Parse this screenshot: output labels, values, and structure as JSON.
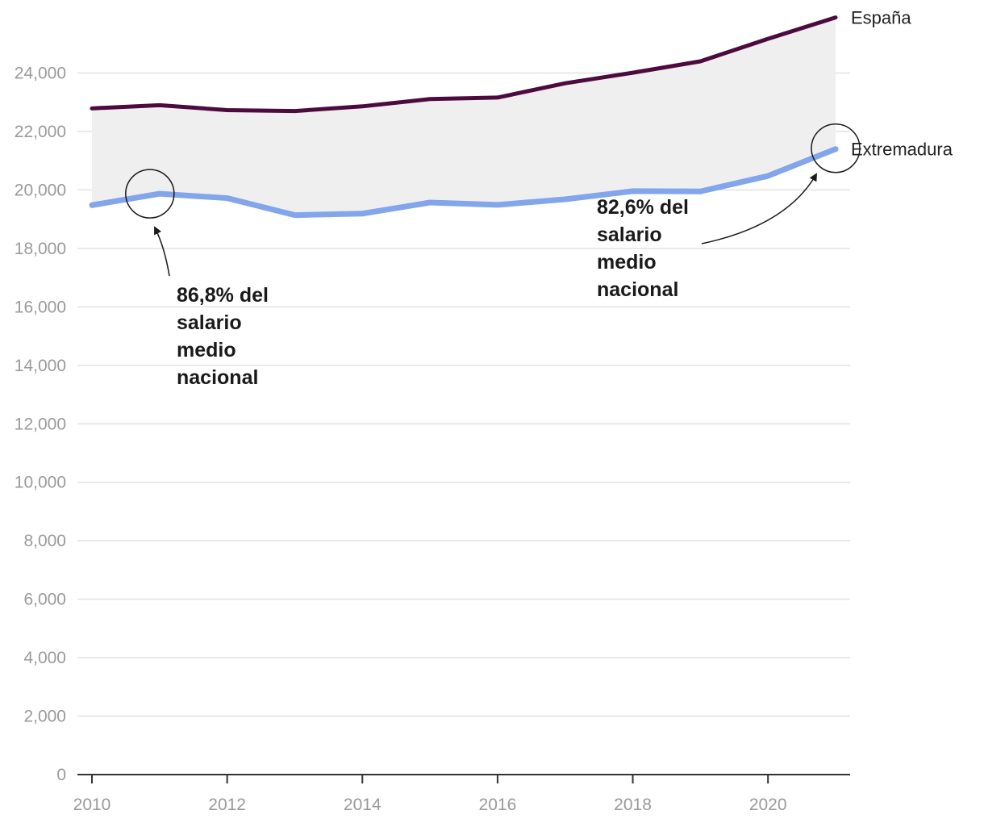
{
  "chart_data": {
    "type": "line",
    "title": "",
    "xlabel": "",
    "ylabel": "",
    "x": [
      2010,
      2011,
      2012,
      2013,
      2014,
      2015,
      2016,
      2017,
      2018,
      2019,
      2020,
      2021
    ],
    "ylim": [
      0,
      26000
    ],
    "xlim": [
      2010,
      2021
    ],
    "y_ticks": [
      0,
      2000,
      4000,
      6000,
      8000,
      10000,
      12000,
      14000,
      16000,
      18000,
      20000,
      22000,
      24000
    ],
    "y_tick_labels": [
      "0",
      "2,000",
      "4,000",
      "6,000",
      "8,000",
      "10,000",
      "12,000",
      "14,000",
      "16,000",
      "18,000",
      "20,000",
      "22,000",
      "24,000"
    ],
    "x_ticks": [
      2010,
      2012,
      2014,
      2016,
      2018,
      2020
    ],
    "x_tick_labels": [
      "2010",
      "2012",
      "2014",
      "2016",
      "2018",
      "2020"
    ],
    "grid": true,
    "gap_fill": "#efefef",
    "series": [
      {
        "name": "España",
        "color": "#4d0a3f",
        "values": [
          22790,
          22900,
          22730,
          22700,
          22860,
          23110,
          23160,
          23650,
          24010,
          24400,
          25170,
          25900
        ]
      },
      {
        "name": "Extremadura",
        "color": "#82a5ec",
        "values": [
          19480,
          19870,
          19720,
          19140,
          19190,
          19570,
          19490,
          19680,
          19960,
          19950,
          20480,
          21400
        ]
      }
    ],
    "annotations": [
      {
        "lines": [
          "86,8% del",
          "salario",
          "medio",
          "nacional"
        ],
        "x": 2011,
        "y": 19870,
        "series": "Extremadura"
      },
      {
        "lines": [
          "82,6% del",
          "salario",
          "medio",
          "nacional"
        ],
        "x": 2021,
        "y": 21400,
        "series": "Extremadura"
      }
    ]
  }
}
